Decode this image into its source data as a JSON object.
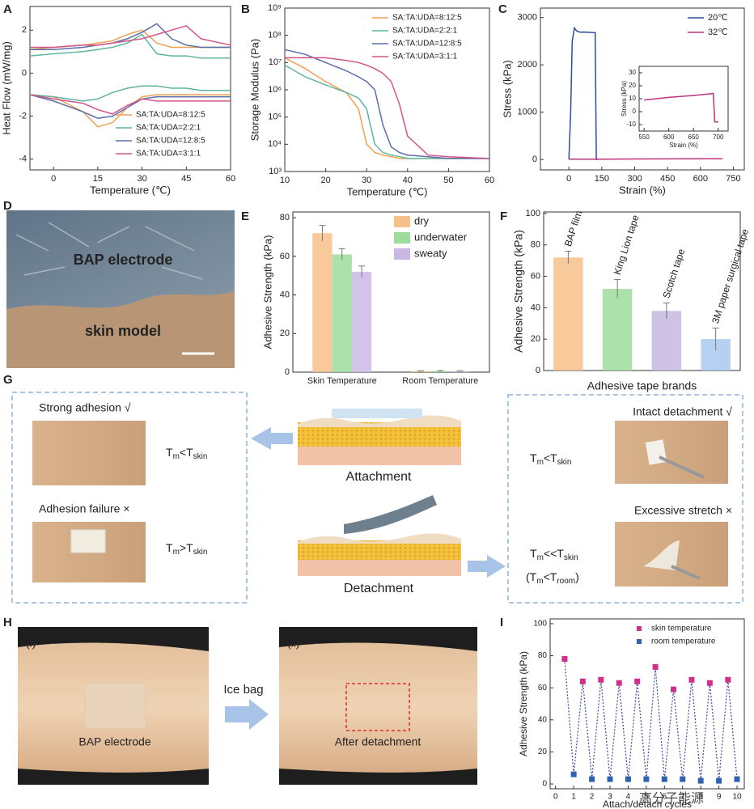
{
  "chart_data": [
    {
      "type": "line",
      "label": "A",
      "xlabel": "Temperature (℃)",
      "ylabel": "Heat Flow (mW/mg)",
      "x": [
        -8,
        0,
        10,
        15,
        20,
        25,
        30,
        35,
        40,
        45,
        50,
        60
      ],
      "xlim": [
        -8,
        60
      ],
      "xticks": [
        0,
        15,
        30,
        45,
        60
      ],
      "ylim": [
        -4.5,
        3.1
      ],
      "yticks": [
        -4,
        -2,
        0,
        2
      ],
      "legend": "lower right",
      "series": [
        {
          "name": "SA:TA:UDA=8:12:5",
          "color": "#f0a050",
          "values": [
            1.1,
            1.2,
            1.3,
            1.4,
            1.5,
            1.8,
            2.0,
            1.4,
            1.2,
            1.2,
            1.2,
            1.2
          ],
          "values_lower": [
            -1.0,
            -1.1,
            -1.8,
            -2.5,
            -2.3,
            -1.6,
            -1.1,
            -1.0,
            -1.0,
            -1.0,
            -1.0,
            -1.0
          ]
        },
        {
          "name": "SA:TA:UDA=2:2:1",
          "color": "#5fb5a0",
          "values": [
            0.8,
            0.9,
            1.0,
            1.1,
            1.2,
            1.4,
            1.8,
            0.9,
            0.8,
            0.8,
            0.7,
            0.7
          ],
          "values_lower": [
            -1.0,
            -1.1,
            -1.3,
            -1.2,
            -0.9,
            -0.7,
            -0.6,
            -0.6,
            -0.7,
            -0.7,
            -0.8,
            -0.8
          ]
        },
        {
          "name": "SA:TA:UDA=12:8:5",
          "color": "#5a6fa8",
          "values": [
            1.1,
            1.1,
            1.2,
            1.3,
            1.4,
            1.6,
            1.9,
            2.3,
            1.6,
            1.3,
            1.2,
            1.2
          ],
          "values_lower": [
            -1.0,
            -1.3,
            -1.8,
            -2.1,
            -2.0,
            -1.6,
            -1.2,
            -1.1,
            -1.1,
            -1.1,
            -1.1,
            -1.1
          ]
        },
        {
          "name": "SA:TA:UDA=3:1:1",
          "color": "#d2558a",
          "values": [
            1.2,
            1.2,
            1.3,
            1.3,
            1.4,
            1.5,
            1.6,
            1.8,
            2.0,
            2.2,
            1.6,
            1.3
          ],
          "values_lower": [
            -1.0,
            -1.2,
            -1.4,
            -1.7,
            -1.9,
            -1.5,
            -1.2,
            -1.3,
            -1.3,
            -1.3,
            -1.3,
            -1.3
          ]
        }
      ]
    },
    {
      "type": "line",
      "label": "B",
      "xlabel": "Temperature (℃)",
      "ylabel": "Storage Modulus (Pa)",
      "x": [
        10,
        15,
        20,
        25,
        28,
        30,
        32,
        34,
        36,
        38,
        40,
        45,
        50,
        60
      ],
      "xlim": [
        10,
        60
      ],
      "xticks": [
        10,
        20,
        30,
        40,
        50,
        60
      ],
      "ylog": true,
      "ylim": [
        1000,
        1000000000
      ],
      "yticks": [
        {
          "value": 1000,
          "label": "10³"
        },
        {
          "value": 10000,
          "label": "10⁴"
        },
        {
          "value": 100000,
          "label": "10⁵"
        },
        {
          "value": 1000000,
          "label": "10⁶"
        },
        {
          "value": 10000000,
          "label": "10⁷"
        },
        {
          "value": 100000000,
          "label": "10⁸"
        },
        {
          "value": 1000000000,
          "label": "10⁹"
        }
      ],
      "legend": "upper right",
      "series": [
        {
          "name": "SA:TA:UDA=8:12:5",
          "color": "#f0a050",
          "values": [
            15000000,
            6000000,
            2000000,
            800000,
            200000,
            10000,
            5000,
            4000,
            3500,
            3000,
            3000,
            3000,
            3000,
            3000
          ]
        },
        {
          "name": "SA:TA:UDA=2:2:1",
          "color": "#5fb5a0",
          "values": [
            8000000,
            3000000,
            1500000,
            800000,
            500000,
            200000,
            10000,
            5000,
            4000,
            3500,
            3000,
            3000,
            3000,
            3000
          ]
        },
        {
          "name": "SA:TA:UDA=12:8:5",
          "color": "#5a6fa8",
          "values": [
            30000000,
            20000000,
            10000000,
            5000000,
            3000000,
            2000000,
            1000000,
            50000,
            8000,
            5000,
            4000,
            3500,
            3000,
            3000
          ]
        },
        {
          "name": "SA:TA:UDA=3:1:1",
          "color": "#d2558a",
          "values": [
            15000000,
            15000000,
            15000000,
            12000000,
            10000000,
            8000000,
            6000000,
            4000000,
            2000000,
            300000,
            20000,
            4000,
            3500,
            3000
          ]
        }
      ]
    },
    {
      "type": "line",
      "label": "C",
      "xlabel": "Strain (%)",
      "ylabel": "Stress (kPa)",
      "xlim": [
        -130,
        800
      ],
      "xticks": [
        0,
        150,
        300,
        450,
        600,
        750
      ],
      "ylim": [
        -220,
        3200
      ],
      "yticks": [
        0,
        1000,
        2000,
        3000
      ],
      "legend": "upper right",
      "series": [
        {
          "name": "20℃",
          "color": "#2b4d9a",
          "x": [
            0,
            8,
            15,
            25,
            35,
            50,
            80,
            120,
            125,
            130
          ],
          "values": [
            0,
            1000,
            2500,
            2780,
            2720,
            2690,
            2690,
            2680,
            0,
            0
          ]
        },
        {
          "name": "32℃",
          "color": "#c0337a",
          "x": [
            0,
            150,
            300,
            450,
            600,
            700
          ],
          "values": [
            5,
            8,
            10,
            12,
            14,
            15
          ]
        }
      ]
    },
    {
      "type": "line",
      "xlabel": "Strain (%)",
      "ylabel": "Stress (kPa)",
      "xlim": [
        540,
        720
      ],
      "xticks": [
        550,
        600,
        650,
        700
      ],
      "ylim": [
        -15,
        35
      ],
      "yticks": [
        -10,
        0,
        10,
        20,
        30
      ],
      "series": [
        {
          "color": "#c0337a",
          "x": [
            550,
            600,
            650,
            690,
            693,
            700
          ],
          "values": [
            9,
            11,
            12.5,
            14,
            -8,
            -8
          ]
        }
      ]
    },
    {
      "type": "bar",
      "label": "E",
      "ylabel": "Adhesive Strength (kPa)",
      "categories": [
        "Skin Temperature",
        "Room Temperature"
      ],
      "ylim": [
        0,
        83
      ],
      "yticks": [
        0,
        20,
        40,
        60,
        80
      ],
      "legend": "upper right",
      "series": [
        {
          "name": "dry",
          "color": "#f7c08a",
          "values": [
            72,
            0.5
          ],
          "errors": [
            4,
            0.2
          ]
        },
        {
          "name": "underwater",
          "color": "#9edc9e",
          "values": [
            61,
            0.6
          ],
          "errors": [
            3,
            0.2
          ]
        },
        {
          "name": "sweaty",
          "color": "#c9b8e6",
          "values": [
            52,
            0.5
          ],
          "errors": [
            3,
            0.2
          ]
        }
      ]
    },
    {
      "type": "bar",
      "label": "F",
      "xlabel": "Adhesive tape brands",
      "ylabel": "Adhesive Strength (kPa)",
      "categories": [
        "BAP film",
        "King Lion tape",
        "Scotch tape",
        "3M paper surgical tape"
      ],
      "values": [
        72,
        52,
        38,
        20
      ],
      "errors": [
        4,
        6,
        5,
        7
      ],
      "colors": [
        "#f7c08a",
        "#9edc9e",
        "#c6b8e0",
        "#a8c8ef"
      ],
      "ylim": [
        0,
        101
      ],
      "yticks": [
        0,
        20,
        40,
        60,
        80,
        100
      ]
    },
    {
      "type": "scatter",
      "label": "I",
      "xlabel": "Attach/detach cycles",
      "ylabel": "Adhesive Strength (kPa)",
      "xlim": [
        -0.3,
        10.4
      ],
      "xticks": [
        0,
        1,
        2,
        3,
        4,
        5,
        6,
        7,
        8,
        9,
        10
      ],
      "ylim": [
        -3,
        103
      ],
      "yticks": [
        0,
        20,
        40,
        60,
        80,
        100
      ],
      "legend": "upper right",
      "series": [
        {
          "name": "skin temperature",
          "color": "#d0308a",
          "x": [
            0.5,
            1.5,
            2.5,
            3.5,
            4.5,
            5.5,
            6.5,
            7.5,
            8.5,
            9.5
          ],
          "values": [
            78,
            64,
            65,
            63,
            64,
            73,
            59,
            65,
            63,
            65
          ]
        },
        {
          "name": "room temperature",
          "color": "#3060b0",
          "x": [
            1,
            2,
            3,
            4,
            5,
            6,
            7,
            8,
            9,
            10
          ],
          "values": [
            6,
            3,
            3,
            3,
            3,
            3,
            3,
            2,
            2,
            3
          ]
        }
      ]
    }
  ],
  "panel_d": {
    "label": "D",
    "top": "BAP electrode",
    "bottom": "skin model"
  },
  "panel_g": {
    "label": "G",
    "attachment": "Attachment",
    "detachment": "Detachment",
    "left": [
      {
        "caption": "Strong adhesion √",
        "condition": [
          "T",
          "m",
          "<T",
          "skin"
        ]
      },
      {
        "caption": "Adhesion failure ×",
        "condition": [
          "T",
          "m",
          ">T",
          "skin"
        ]
      }
    ],
    "right": [
      {
        "caption": "Intact detachment √",
        "condition": [
          "T",
          "m",
          "<T",
          "skin"
        ]
      },
      {
        "caption": "Excessive stretch ×",
        "condition": [
          "T",
          "m",
          "<<T",
          "skin"
        ],
        "condition_2": [
          "(T",
          "m",
          "<T",
          "room",
          ")"
        ]
      }
    ]
  },
  "panel_h": {
    "label": "H",
    "first": "(i)",
    "second": "(ii)",
    "arrow": "Ice bag",
    "first_caption": "BAP electrode",
    "second_caption": "After detachment"
  },
  "watermark": "高分子能源"
}
